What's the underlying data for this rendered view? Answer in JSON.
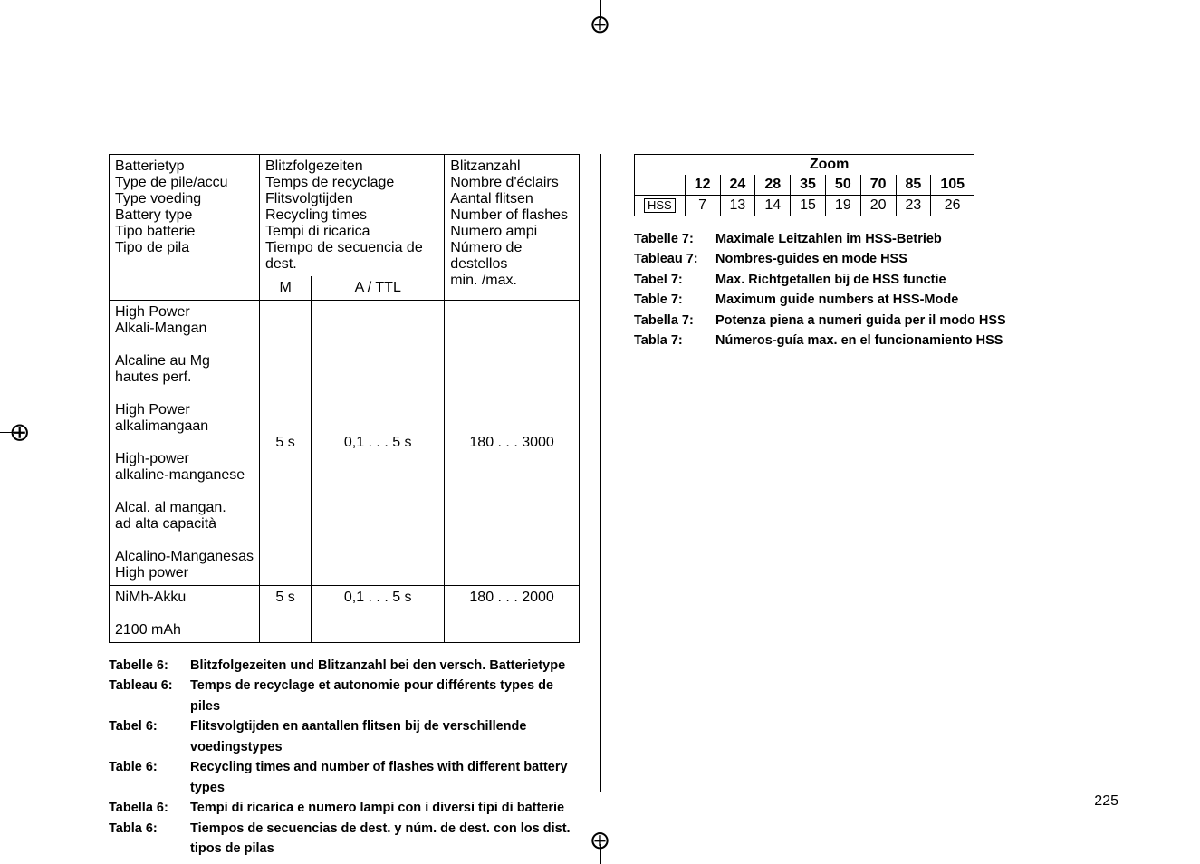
{
  "crop_glyph": "⊕",
  "left_table": {
    "head": {
      "col1": [
        "Batterietyp",
        "Type de pile/accu",
        "Type voeding",
        "Battery type",
        "Tipo batterie",
        "Tipo de pila"
      ],
      "col2_top": [
        "Blitzfolgezeiten",
        "Temps de recyclage",
        "Flitsvolgtijden",
        "Recycling times",
        "Tempi di ricarica",
        "Tiempo de secuencia de dest."
      ],
      "col2_sub_left": "M",
      "col2_sub_right": "A / TTL",
      "col3": [
        "Blitzanzahl",
        "Nombre d'éclairs",
        "Aantal flitsen",
        "Number of flashes",
        "Numero ampi",
        "Número de destellos",
        "min. /max."
      ]
    },
    "row1": {
      "names": [
        "High Power",
        "Alkali-Mangan",
        "",
        "Alcaline au Mg",
        "hautes perf.",
        "",
        "High Power",
        "alkalimangaan",
        "",
        "High-power",
        "alkaline-manganese",
        "",
        "Alcal. al mangan.",
        "ad alta capacità",
        "",
        "Alcalino-Manganesas",
        "High power"
      ],
      "m": "5 s",
      "attl": "0,1 . . . 5 s",
      "count": "180 . . . 3000"
    },
    "row2": {
      "names": [
        "NiMh-Akku",
        "",
        "2100 mAh"
      ],
      "m": "5 s",
      "attl": "0,1 . . . 5 s",
      "count": "180 . . . 2000"
    }
  },
  "left_captions": [
    {
      "label": "Tabelle 6:",
      "text": "Blitzfolgezeiten und Blitzanzahl bei den versch. Batterietype"
    },
    {
      "label": "Tableau 6:",
      "text": "Temps de recyclage et autonomie pour différents types de piles"
    },
    {
      "label": "Tabel 6:",
      "text": "Flitsvolgtijden en aantallen flitsen bij de verschillende voedingstypes"
    },
    {
      "label": "Table 6:",
      "text": "Recycling times and number of flashes with different battery types"
    },
    {
      "label": "Tabella 6:",
      "text": "Tempi di ricarica e numero lampi con i diversi tipi di batterie"
    },
    {
      "label": "Tabla 6:",
      "text": "Tiempos de secuencias de dest. y núm. de dest. con los dist. tipos de pilas"
    }
  ],
  "zoom_table": {
    "title": "Zoom",
    "headers": [
      "12",
      "24",
      "28",
      "35",
      "50",
      "70",
      "85",
      "105"
    ],
    "row_label": "HSS",
    "values": [
      "7",
      "13",
      "14",
      "15",
      "19",
      "20",
      "23",
      "26"
    ]
  },
  "right_captions": [
    {
      "label": "Tabelle 7:",
      "text": "Maximale Leitzahlen im HSS-Betrieb"
    },
    {
      "label": "Tableau 7:",
      "text": "Nombres-guides en mode HSS"
    },
    {
      "label": "Tabel 7:",
      "text": "Max. Richtgetallen bij de HSS functie"
    },
    {
      "label": "Table 7:",
      "text": "Maximum guide numbers at HSS-Mode"
    },
    {
      "label": "Tabella 7:",
      "text": "Potenza piena a numeri guida per il modo HSS"
    },
    {
      "label": "Tabla 7:",
      "text": "Números-guía max. en el funcionamiento HSS"
    }
  ],
  "page_number": "225"
}
